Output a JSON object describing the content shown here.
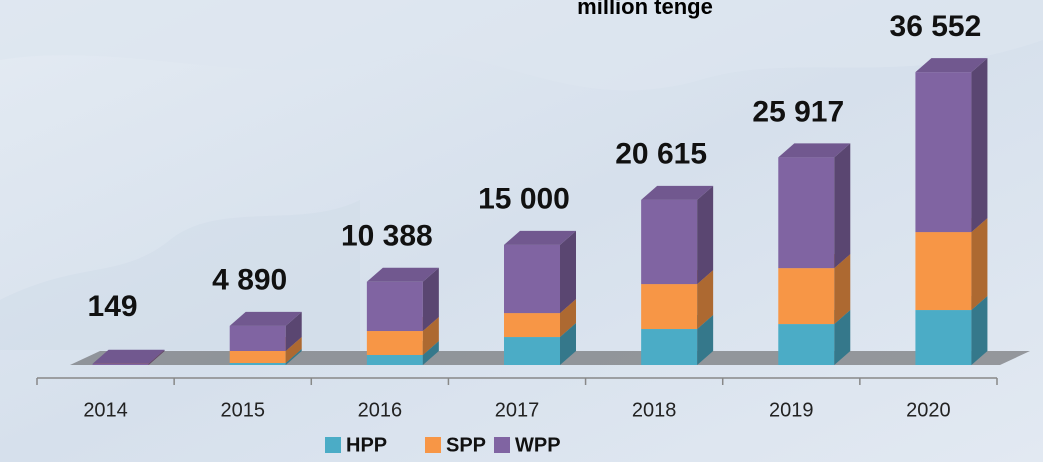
{
  "chart_data": {
    "type": "bar3d-stacked",
    "title": "million tenge",
    "categories": [
      "2014",
      "2015",
      "2016",
      "2017",
      "2018",
      "2019",
      "2020"
    ],
    "series": [
      {
        "name": "HPP",
        "color": "#4bacc6",
        "values": [
          0,
          250,
          1250,
          3490,
          4490,
          5110,
          6860
        ]
      },
      {
        "name": "SPP",
        "color": "#f79646",
        "values": [
          0,
          1500,
          2990,
          2990,
          5610,
          6980,
          9730
        ]
      },
      {
        "name": "WPP",
        "color": "#8064a2",
        "values": [
          149,
          3140,
          6148,
          8520,
          10515,
          13827,
          19962
        ]
      }
    ],
    "totals": [
      149,
      4890,
      10388,
      15000,
      20615,
      25917,
      36552
    ],
    "total_labels": [
      "149",
      "4 890",
      "10 388",
      "15 000",
      "20 615",
      "25 917",
      "36 552"
    ],
    "ylim": [
      0,
      40000
    ]
  }
}
